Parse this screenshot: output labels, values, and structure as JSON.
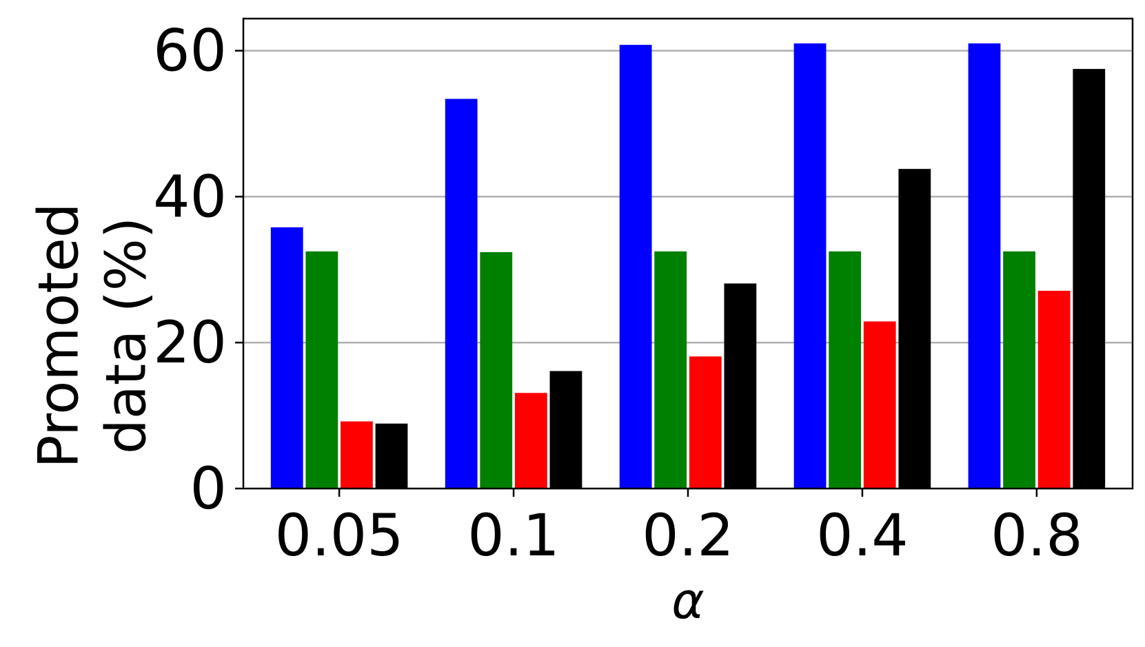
{
  "chart_data": {
    "type": "bar",
    "title": "",
    "xlabel": "α",
    "ylabel": [
      "Promoted",
      "data (%)"
    ],
    "categories": [
      "0.05",
      "0.1",
      "0.2",
      "0.4",
      "0.8"
    ],
    "ylim": [
      0,
      64.4
    ],
    "yticks": [
      "0",
      "20",
      "40",
      "60"
    ],
    "grid": "y",
    "legend": "none",
    "series": [
      {
        "color": "#0000ff",
        "values": [
          35.8,
          53.4,
          60.8,
          61.0,
          61.0
        ]
      },
      {
        "color": "#008000",
        "values": [
          32.5,
          32.4,
          32.5,
          32.5,
          32.5
        ]
      },
      {
        "color": "#ff0000",
        "values": [
          9.2,
          13.1,
          18.1,
          22.9,
          27.1
        ]
      },
      {
        "color": "#000000",
        "values": [
          8.9,
          16.1,
          28.1,
          43.8,
          57.5
        ]
      }
    ]
  }
}
